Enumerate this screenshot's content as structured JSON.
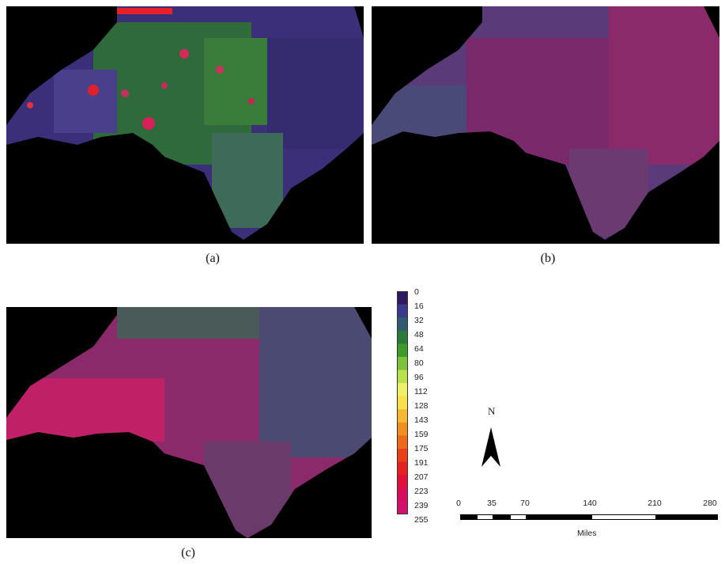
{
  "panels": [
    {
      "id": "a",
      "caption": "(a)",
      "dominant": "mixed"
    },
    {
      "id": "b",
      "caption": "(b)",
      "dominant": "magenta-blue"
    },
    {
      "id": "c",
      "caption": "(c)",
      "dominant": "magenta-grey"
    }
  ],
  "legend": {
    "labels": [
      "0",
      "16",
      "32",
      "48",
      "64",
      "80",
      "96",
      "112",
      "128",
      "143",
      "159",
      "175",
      "191",
      "207",
      "223",
      "239",
      "255"
    ],
    "colors": [
      "#2e1a5e",
      "#3a3a8c",
      "#2f5a70",
      "#2b7a3c",
      "#3e9a2a",
      "#7cc23a",
      "#b8e04a",
      "#eef06a",
      "#f7e04a",
      "#f5b830",
      "#f08e22",
      "#ec6a1a",
      "#e84018",
      "#e42020",
      "#e0103a",
      "#d80c5a",
      "#d4106e"
    ]
  },
  "north_arrow": {
    "label": "N"
  },
  "scale_bar": {
    "ticks": [
      "0",
      "35",
      "70",
      "140",
      "210",
      "280"
    ],
    "units": "Miles"
  }
}
